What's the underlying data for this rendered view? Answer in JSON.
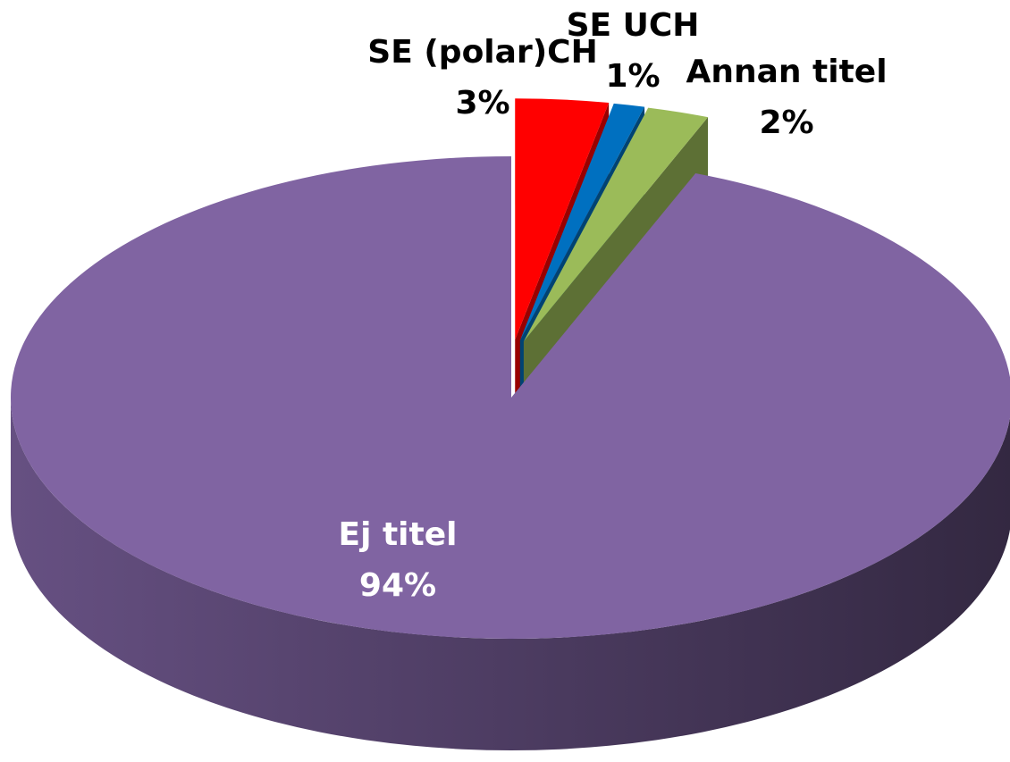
{
  "chart_data": {
    "type": "pie",
    "categories": [
      "SE (polar)CH",
      "SE UCH",
      "Annan titel",
      "Ej titel"
    ],
    "values": [
      3,
      1,
      2,
      94
    ],
    "value_labels": [
      "3%",
      "1%",
      "2%",
      "94%"
    ],
    "colors": [
      "#ff0000",
      "#0070c0",
      "#9bbb59",
      "#8064a2"
    ]
  }
}
